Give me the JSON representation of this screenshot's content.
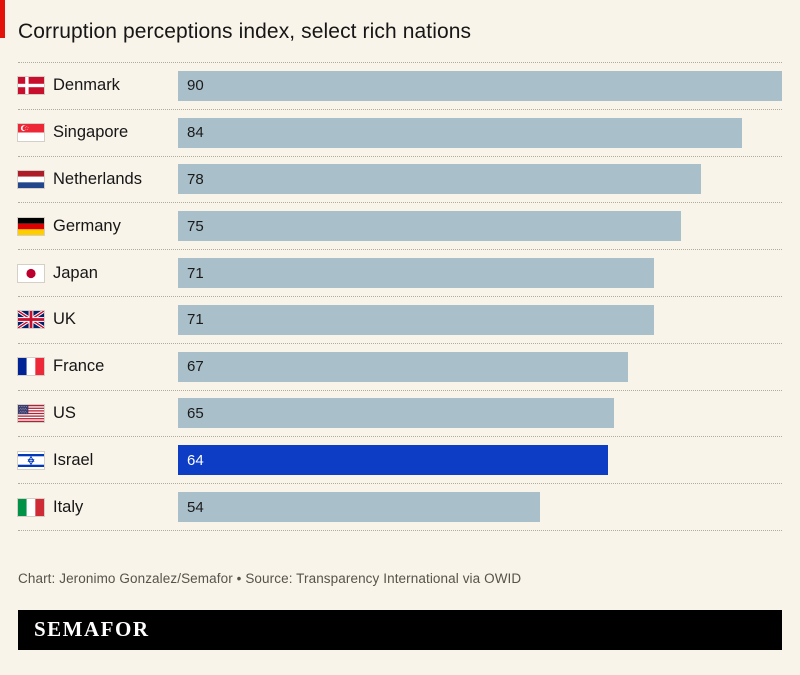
{
  "title": "Corruption perceptions index, select rich nations",
  "footer": {
    "credit": "Chart: Jeronimo Gonzalez/Semafor • Source: Transparency International via OWID"
  },
  "logo": "SEMAFOR",
  "colors": {
    "background": "#f9f4ea",
    "bar": "#a9bfca",
    "highlight": "#0d3cc5",
    "accent_red": "#e3120b",
    "logo_bg": "#000000",
    "logo_text": "#ffffff"
  },
  "chart_data": {
    "type": "bar",
    "orientation": "horizontal",
    "title": "Corruption perceptions index, select rich nations",
    "categories": [
      "Denmark",
      "Singapore",
      "Netherlands",
      "Germany",
      "Japan",
      "UK",
      "France",
      "US",
      "Israel",
      "Italy"
    ],
    "values": [
      90,
      84,
      78,
      75,
      71,
      71,
      67,
      65,
      64,
      54
    ],
    "flags": [
      "denmark-flag",
      "singapore-flag",
      "netherlands-flag",
      "germany-flag",
      "japan-flag",
      "uk-flag",
      "france-flag",
      "us-flag",
      "israel-flag",
      "italy-flag"
    ],
    "highlighted_category": "Israel",
    "xlim": [
      0,
      90
    ],
    "value_labels": "inside-left",
    "grid": false,
    "legend": false
  }
}
